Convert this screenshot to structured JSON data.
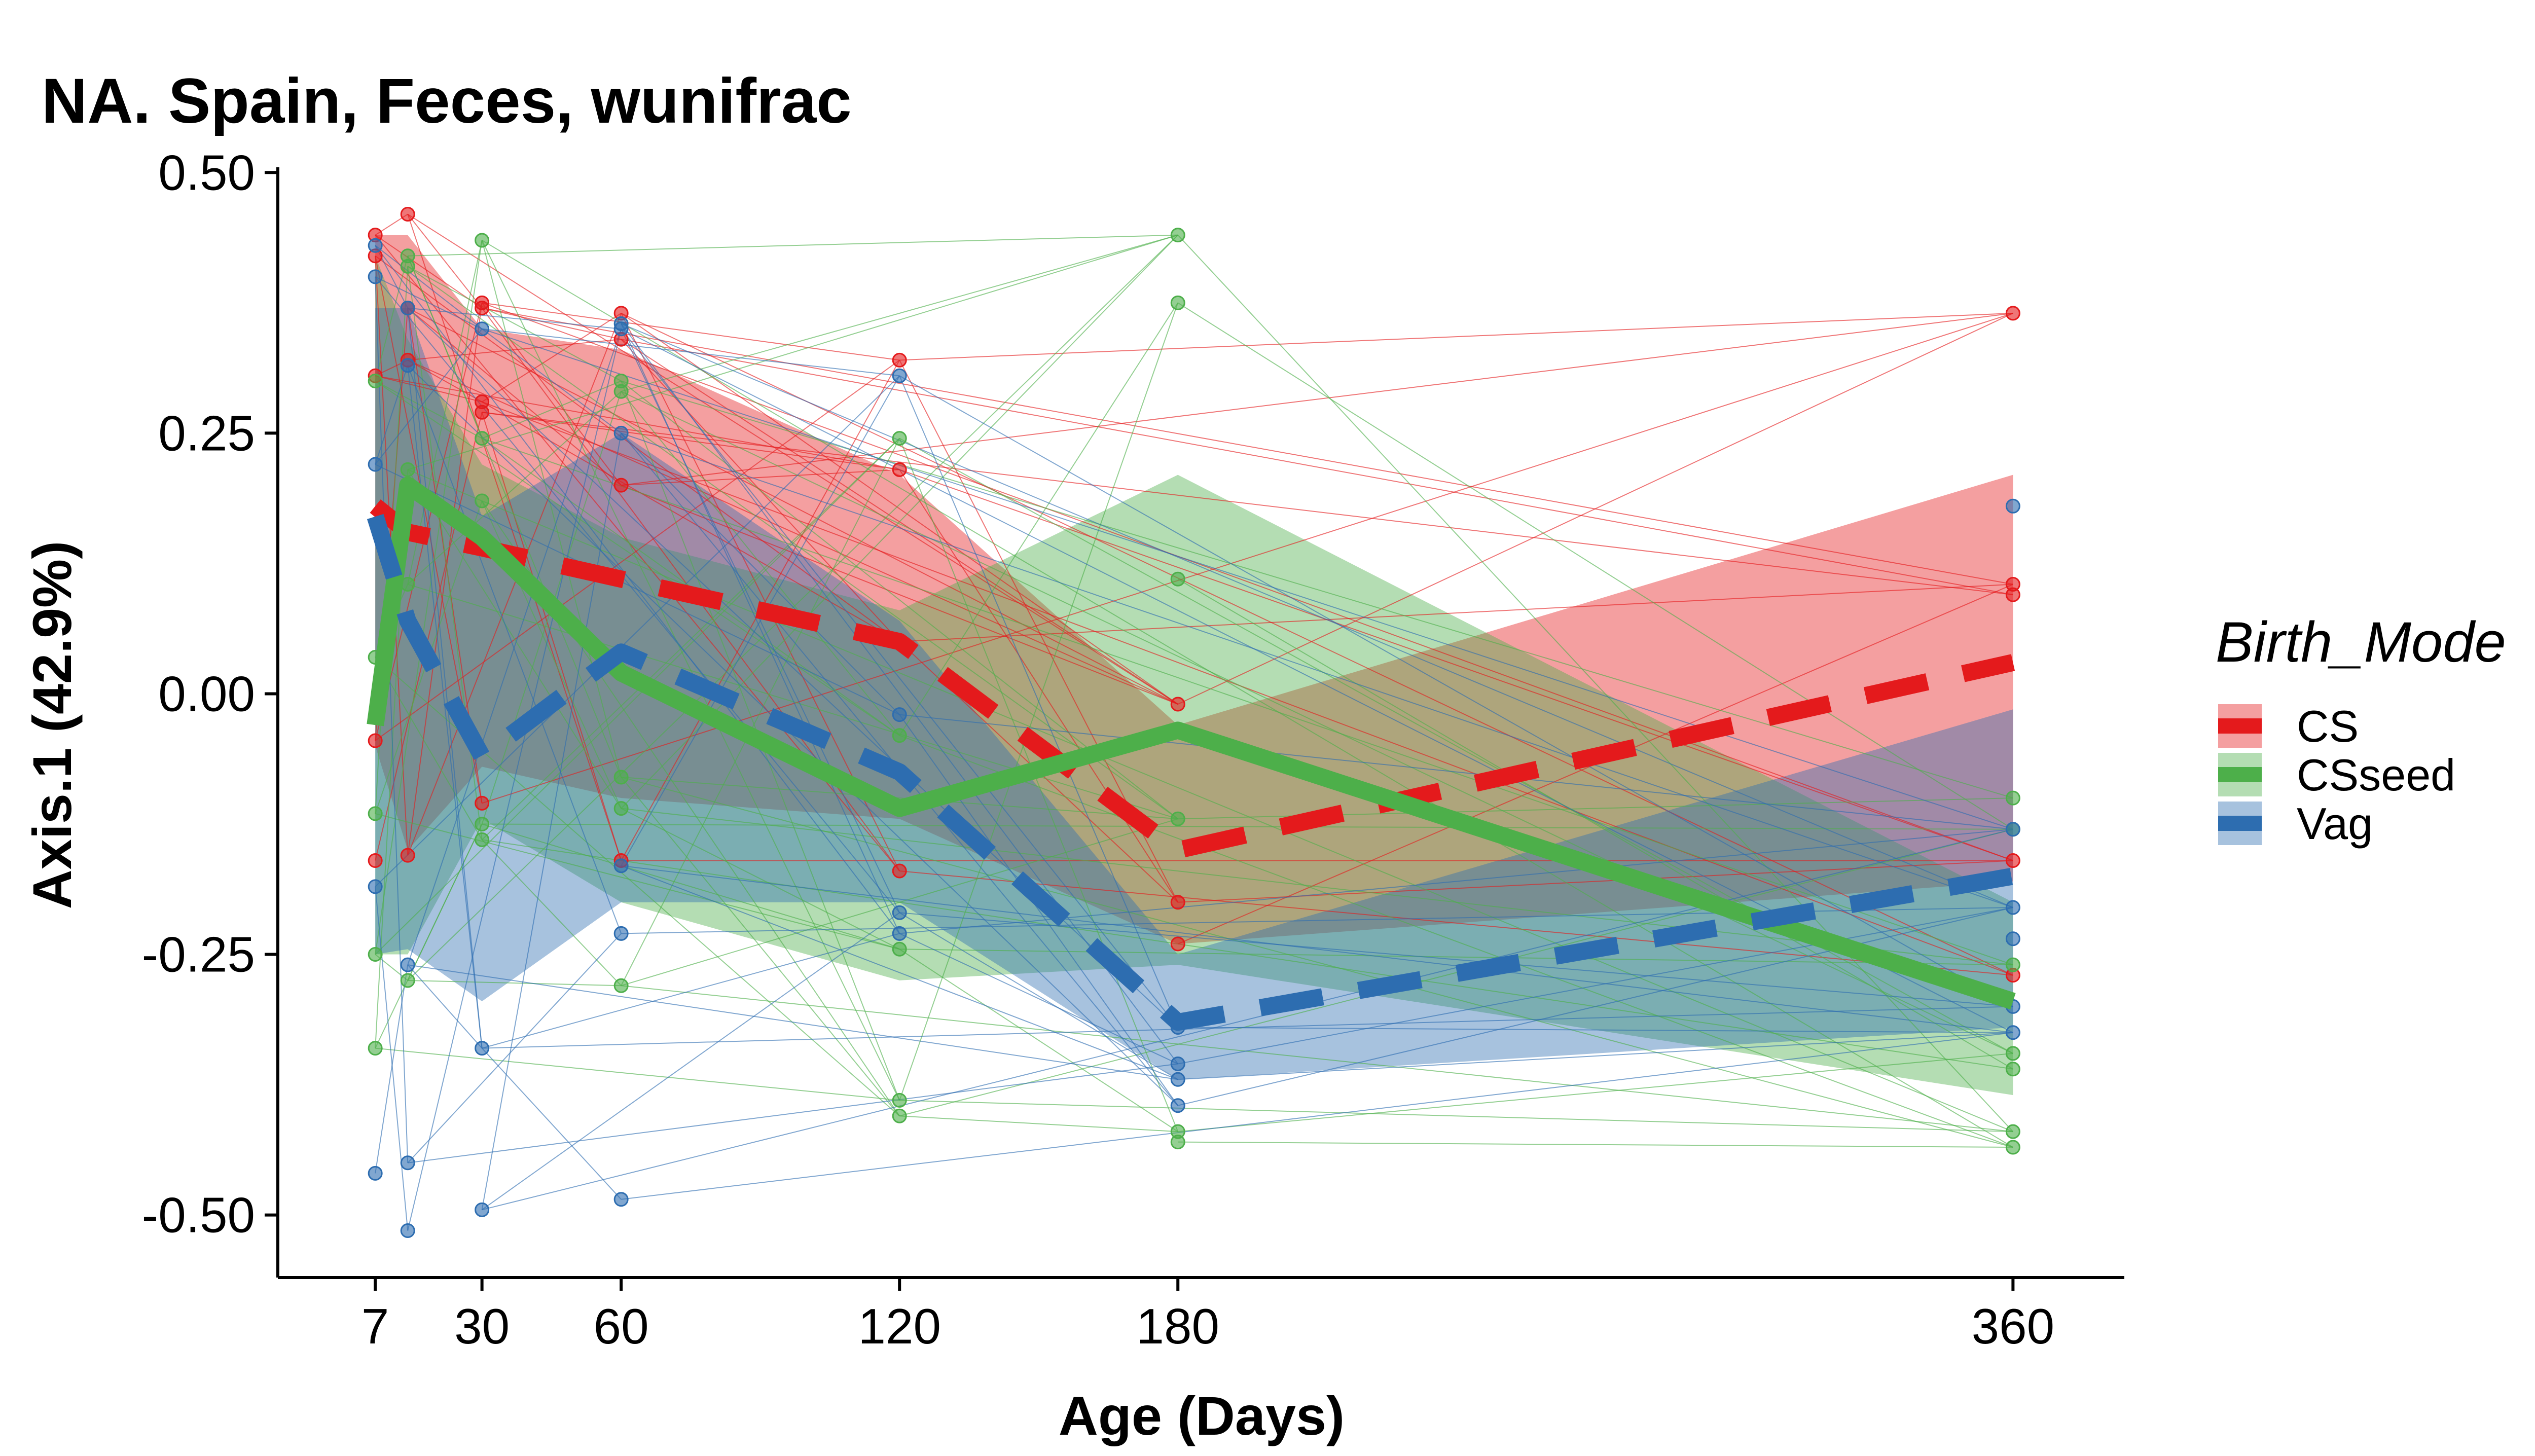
{
  "chart_data": {
    "type": "line",
    "title": "NA. Spain, Feces, wunifrac",
    "xlabel": "Age (Days)",
    "ylabel": "Axis.1 (42.9%)",
    "xlim": [
      -14,
      384
    ],
    "ylim": [
      -0.56,
      0.505
    ],
    "x_ticks": [
      7,
      30,
      60,
      120,
      180,
      360
    ],
    "x_tick_labels": [
      "7",
      "30",
      "60",
      "120",
      "180",
      "360"
    ],
    "y_ticks": [
      0.5,
      0.25,
      0,
      -0.25,
      -0.5
    ],
    "y_tick_labels": [
      "0.50",
      "0.25",
      "0.00",
      "-0.25",
      "-0.50"
    ],
    "grid": false,
    "legend": {
      "title": "Birth_Mode",
      "position": "right"
    },
    "series": [
      {
        "name": "CS",
        "color": "#e41a1c",
        "dash": "dashed",
        "mean": [
          [
            7,
            0.18
          ],
          [
            14,
            0.155
          ],
          [
            30,
            0.14
          ],
          [
            60,
            0.11
          ],
          [
            120,
            0.05
          ],
          [
            180,
            -0.15
          ],
          [
            360,
            0.03
          ]
        ],
        "band_upper": [
          [
            7,
            0.44
          ],
          [
            14,
            0.44
          ],
          [
            30,
            0.35
          ],
          [
            60,
            0.33
          ],
          [
            120,
            0.21
          ],
          [
            180,
            -0.03
          ],
          [
            360,
            0.21
          ]
        ],
        "band_lower": [
          [
            7,
            -0.05
          ],
          [
            14,
            -0.15
          ],
          [
            30,
            -0.07
          ],
          [
            60,
            -0.1
          ],
          [
            120,
            -0.12
          ],
          [
            180,
            -0.24
          ],
          [
            360,
            -0.18
          ]
        ],
        "points": [
          [
            7,
            0.44
          ],
          [
            7,
            0.42
          ],
          [
            7,
            0.305
          ],
          [
            7,
            -0.045
          ],
          [
            7,
            -0.16
          ],
          [
            14,
            0.46
          ],
          [
            14,
            0.37
          ],
          [
            14,
            0.32
          ],
          [
            14,
            -0.155
          ],
          [
            30,
            0.375
          ],
          [
            30,
            0.37
          ],
          [
            30,
            0.28
          ],
          [
            30,
            0.27
          ],
          [
            30,
            -0.105
          ],
          [
            60,
            0.365
          ],
          [
            60,
            0.34
          ],
          [
            60,
            0.2
          ],
          [
            60,
            -0.16
          ],
          [
            120,
            0.32
          ],
          [
            120,
            0.215
          ],
          [
            120,
            0.05
          ],
          [
            120,
            -0.17
          ],
          [
            180,
            -0.01
          ],
          [
            180,
            -0.2
          ],
          [
            180,
            -0.24
          ],
          [
            360,
            0.365
          ],
          [
            360,
            0.105
          ],
          [
            360,
            0.095
          ],
          [
            360,
            -0.16
          ],
          [
            360,
            -0.27
          ]
        ]
      },
      {
        "name": "CSseed",
        "color": "#4daf4a",
        "dash": "solid",
        "mean": [
          [
            7,
            -0.03
          ],
          [
            14,
            0.2
          ],
          [
            30,
            0.15
          ],
          [
            60,
            0.02
          ],
          [
            120,
            -0.11
          ],
          [
            180,
            -0.035
          ],
          [
            360,
            -0.295
          ]
        ],
        "band_upper": [
          [
            7,
            0.42
          ],
          [
            14,
            0.34
          ],
          [
            30,
            0.22
          ],
          [
            60,
            0.15
          ],
          [
            120,
            0.08
          ],
          [
            180,
            0.21
          ],
          [
            360,
            -0.2
          ]
        ],
        "band_lower": [
          [
            7,
            -0.25
          ],
          [
            14,
            -0.25
          ],
          [
            30,
            -0.12
          ],
          [
            60,
            -0.2
          ],
          [
            120,
            -0.275
          ],
          [
            180,
            -0.26
          ],
          [
            360,
            -0.385
          ]
        ],
        "points": [
          [
            7,
            0.3
          ],
          [
            7,
            0.035
          ],
          [
            7,
            -0.115
          ],
          [
            7,
            -0.25
          ],
          [
            7,
            -0.34
          ],
          [
            14,
            0.42
          ],
          [
            14,
            0.41
          ],
          [
            14,
            0.215
          ],
          [
            14,
            0.105
          ],
          [
            14,
            -0.275
          ],
          [
            30,
            0.435
          ],
          [
            30,
            0.245
          ],
          [
            30,
            0.185
          ],
          [
            30,
            -0.125
          ],
          [
            30,
            -0.14
          ],
          [
            60,
            0.3
          ],
          [
            60,
            0.29
          ],
          [
            60,
            -0.08
          ],
          [
            60,
            -0.11
          ],
          [
            60,
            -0.28
          ],
          [
            120,
            0.245
          ],
          [
            120,
            -0.04
          ],
          [
            120,
            -0.245
          ],
          [
            120,
            -0.39
          ],
          [
            120,
            -0.405
          ],
          [
            180,
            0.44
          ],
          [
            180,
            0.375
          ],
          [
            180,
            0.11
          ],
          [
            180,
            -0.12
          ],
          [
            180,
            -0.42
          ],
          [
            180,
            -0.43
          ],
          [
            360,
            -0.1
          ],
          [
            360,
            -0.13
          ],
          [
            360,
            -0.26
          ],
          [
            360,
            -0.345
          ],
          [
            360,
            -0.36
          ],
          [
            360,
            -0.42
          ],
          [
            360,
            -0.435
          ]
        ]
      },
      {
        "name": "Vag",
        "color": "#2d6db0",
        "dash": "dashed",
        "mean": [
          [
            7,
            0.17
          ],
          [
            14,
            0.07
          ],
          [
            30,
            -0.06
          ],
          [
            60,
            0.04
          ],
          [
            120,
            -0.075
          ],
          [
            180,
            -0.315
          ],
          [
            360,
            -0.175
          ]
        ],
        "band_upper": [
          [
            7,
            0.37
          ],
          [
            14,
            0.37
          ],
          [
            30,
            0.17
          ],
          [
            60,
            0.25
          ],
          [
            120,
            0.07
          ],
          [
            180,
            -0.25
          ],
          [
            360,
            -0.015
          ]
        ],
        "band_lower": [
          [
            7,
            -0.25
          ],
          [
            14,
            -0.245
          ],
          [
            30,
            -0.295
          ],
          [
            60,
            -0.2
          ],
          [
            120,
            -0.2
          ],
          [
            180,
            -0.37
          ],
          [
            360,
            -0.32
          ]
        ],
        "points": [
          [
            7,
            0.43
          ],
          [
            7,
            0.4
          ],
          [
            7,
            0.22
          ],
          [
            7,
            -0.185
          ],
          [
            7,
            -0.46
          ],
          [
            14,
            0.37
          ],
          [
            14,
            0.315
          ],
          [
            14,
            -0.26
          ],
          [
            14,
            -0.45
          ],
          [
            14,
            -0.515
          ],
          [
            30,
            0.35
          ],
          [
            30,
            -0.34
          ],
          [
            30,
            -0.495
          ],
          [
            60,
            0.355
          ],
          [
            60,
            0.35
          ],
          [
            60,
            0.25
          ],
          [
            60,
            -0.165
          ],
          [
            60,
            -0.23
          ],
          [
            60,
            -0.485
          ],
          [
            120,
            0.305
          ],
          [
            120,
            -0.02
          ],
          [
            120,
            -0.21
          ],
          [
            120,
            -0.23
          ],
          [
            180,
            -0.32
          ],
          [
            180,
            -0.355
          ],
          [
            180,
            -0.37
          ],
          [
            180,
            -0.395
          ],
          [
            360,
            0.18
          ],
          [
            360,
            -0.13
          ],
          [
            360,
            -0.205
          ],
          [
            360,
            -0.235
          ],
          [
            360,
            -0.3
          ],
          [
            360,
            -0.325
          ]
        ]
      }
    ]
  }
}
